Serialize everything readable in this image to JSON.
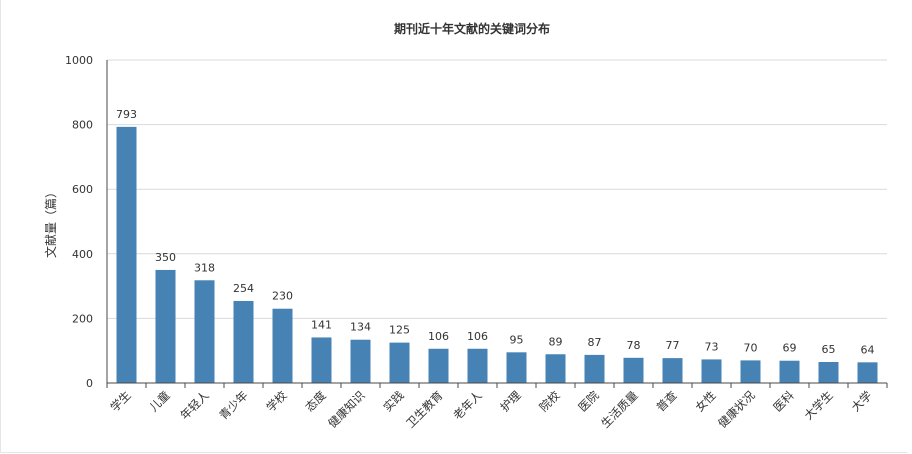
{
  "chart_data": {
    "type": "bar",
    "title": "期刊近十年文献的关键词分布",
    "xlabel": "",
    "ylabel": "文献量（篇）",
    "ylim": [
      0,
      1000
    ],
    "yticks": [
      0,
      200,
      400,
      600,
      800,
      1000
    ],
    "grid": true,
    "legend": "none",
    "bar_color": "#4682b4",
    "categories": [
      "学生",
      "儿童",
      "年轻人",
      "青少年",
      "学校",
      "态度",
      "健康知识",
      "实践",
      "卫生教育",
      "老年人",
      "护理",
      "院校",
      "医院",
      "生活质量",
      "普查",
      "女性",
      "健康状况",
      "医科",
      "大学生",
      "大学"
    ],
    "values": [
      793,
      350,
      318,
      254,
      230,
      141,
      134,
      125,
      106,
      106,
      95,
      89,
      87,
      78,
      77,
      73,
      70,
      69,
      65,
      64
    ]
  }
}
